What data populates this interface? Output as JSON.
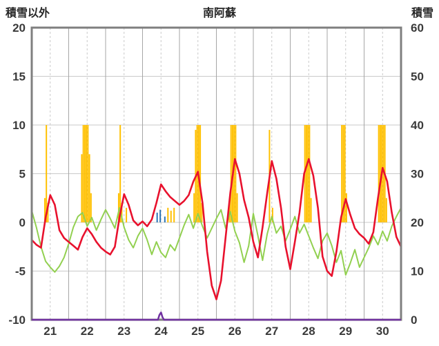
{
  "header": {
    "left_axis_title": "積雪以外",
    "title": "南阿蘇",
    "right_axis_title": "積雪"
  },
  "chart_data": {
    "type": "line",
    "title": "南阿蘇",
    "x_day_labels": [
      "21",
      "22",
      "23",
      "24",
      "25",
      "26",
      "27",
      "28",
      "29",
      "30"
    ],
    "hours_total": 240,
    "left_axis": {
      "title": "積雪以外",
      "min": -10,
      "max": 20,
      "ticks": [
        20,
        15,
        10,
        5,
        0,
        -5,
        -10
      ]
    },
    "right_axis": {
      "title": "積雪",
      "min": 0,
      "max": 60,
      "ticks": [
        60,
        50,
        40,
        30,
        20,
        10,
        0
      ]
    },
    "grid": {
      "h_lines_at": [
        20,
        15,
        10,
        5,
        0,
        -5,
        -10
      ],
      "v_solid_every_hours": 24,
      "v_dashed_offset_hours": 12
    },
    "colors": {
      "red_line": "#e8112d",
      "green_line": "#92d050",
      "orange_bars": "#ffc000",
      "blue_bars": "#2e75b6",
      "purple_line": "#7030a0",
      "grid": "#c9c9c9",
      "day_grid": "#a6a6a6",
      "border": "#7f7f7f",
      "tick_text": "#3a3a3a"
    },
    "series": {
      "red_line": {
        "type": "line",
        "axis": "left",
        "step_hours": 3,
        "values": [
          -1.8,
          -2.3,
          -2.6,
          0.5,
          2.8,
          1.8,
          -0.8,
          -1.6,
          -2.0,
          -2.4,
          -2.8,
          -1.5,
          -0.6,
          -1.2,
          -2.0,
          -2.6,
          -3.0,
          -3.3,
          -2.5,
          0.5,
          2.9,
          1.8,
          0.2,
          -0.3,
          0.1,
          -0.4,
          0.3,
          2.0,
          3.9,
          3.2,
          2.6,
          2.2,
          1.8,
          2.2,
          2.8,
          4.2,
          5.2,
          2.0,
          -3.0,
          -6.5,
          -7.9,
          -6.0,
          -1.5,
          3.0,
          6.5,
          5.0,
          2.3,
          0.5,
          -2.0,
          -3.6,
          -0.5,
          3.0,
          6.3,
          4.5,
          1.5,
          -2.5,
          -4.8,
          -2.0,
          1.0,
          5.0,
          6.5,
          4.8,
          1.5,
          -3.5,
          -5.0,
          -5.5,
          -3.0,
          0.5,
          2.4,
          0.8,
          -0.6,
          -1.2,
          -1.6,
          -2.2,
          -1.0,
          2.5,
          5.6,
          4.2,
          1.0,
          -1.5,
          -2.5
        ]
      },
      "green_line": {
        "type": "line",
        "axis": "left",
        "step_hours": 3,
        "values": [
          1.2,
          -0.5,
          -2.5,
          -4.0,
          -4.6,
          -5.1,
          -4.5,
          -3.6,
          -2.2,
          -0.5,
          0.6,
          1.0,
          -0.4,
          0.5,
          -0.8,
          0.3,
          1.3,
          0.4,
          -0.6,
          1.5,
          -0.5,
          -1.8,
          -2.6,
          -1.4,
          -0.6,
          -1.8,
          -3.3,
          -2.0,
          -3.1,
          -3.6,
          -2.3,
          -2.9,
          -1.6,
          -0.3,
          0.8,
          -0.6,
          0.9,
          -0.4,
          -1.6,
          -0.6,
          0.4,
          1.3,
          -0.6,
          1.1,
          -0.9,
          -2.1,
          -4.1,
          -2.4,
          0.9,
          -1.4,
          -3.9,
          -1.2,
          0.6,
          -1.1,
          -0.4,
          -1.9,
          -0.7,
          0.6,
          -1.1,
          -0.2,
          -1.4,
          -2.6,
          -3.7,
          -1.9,
          -1.1,
          -2.4,
          -4.1,
          -2.9,
          -5.4,
          -4.2,
          -2.8,
          -4.6,
          -3.6,
          -2.6,
          -1.4,
          -2.3,
          -0.9,
          -1.9,
          -0.4,
          0.6,
          1.5
        ]
      },
      "orange_bars": {
        "type": "bar",
        "axis": "left",
        "points": [
          [
            8,
            2.5
          ],
          [
            9,
            10
          ],
          [
            10,
            2
          ],
          [
            32,
            7
          ],
          [
            33,
            10
          ],
          [
            34,
            10
          ],
          [
            35,
            10
          ],
          [
            36,
            10
          ],
          [
            37,
            7
          ],
          [
            38,
            3
          ],
          [
            56,
            3
          ],
          [
            57,
            10
          ],
          [
            58,
            2
          ],
          [
            61,
            1.5
          ],
          [
            88,
            1.5
          ],
          [
            90,
            1.2
          ],
          [
            92,
            1.5
          ],
          [
            105,
            3
          ],
          [
            106,
            9.5
          ],
          [
            107,
            10
          ],
          [
            108,
            10
          ],
          [
            109,
            10
          ],
          [
            110,
            2
          ],
          [
            128,
            2
          ],
          [
            129,
            10
          ],
          [
            130,
            10
          ],
          [
            131,
            10
          ],
          [
            132,
            10
          ],
          [
            133,
            3
          ],
          [
            154,
            9.5
          ],
          [
            156,
            1.5
          ],
          [
            177,
            10
          ],
          [
            178,
            10
          ],
          [
            179,
            10
          ],
          [
            180,
            10
          ],
          [
            181,
            2.5
          ],
          [
            201,
            10
          ],
          [
            202,
            10
          ],
          [
            203,
            10
          ],
          [
            204,
            3
          ],
          [
            225,
            10
          ],
          [
            226,
            10
          ],
          [
            227,
            10
          ],
          [
            228,
            10
          ],
          [
            229,
            10
          ],
          [
            230,
            2.5
          ]
        ]
      },
      "blue_bars": {
        "type": "bar",
        "axis": "left",
        "points": [
          [
            81,
            1.0
          ],
          [
            83,
            1.3
          ],
          [
            86,
            0.6
          ]
        ]
      },
      "purple_line": {
        "type": "line",
        "axis": "right",
        "points": [
          [
            0,
            0
          ],
          [
            82,
            0
          ],
          [
            83,
            1
          ],
          [
            84,
            1.5
          ],
          [
            85,
            0.5
          ],
          [
            86,
            0
          ],
          [
            240,
            0
          ]
        ]
      }
    }
  }
}
